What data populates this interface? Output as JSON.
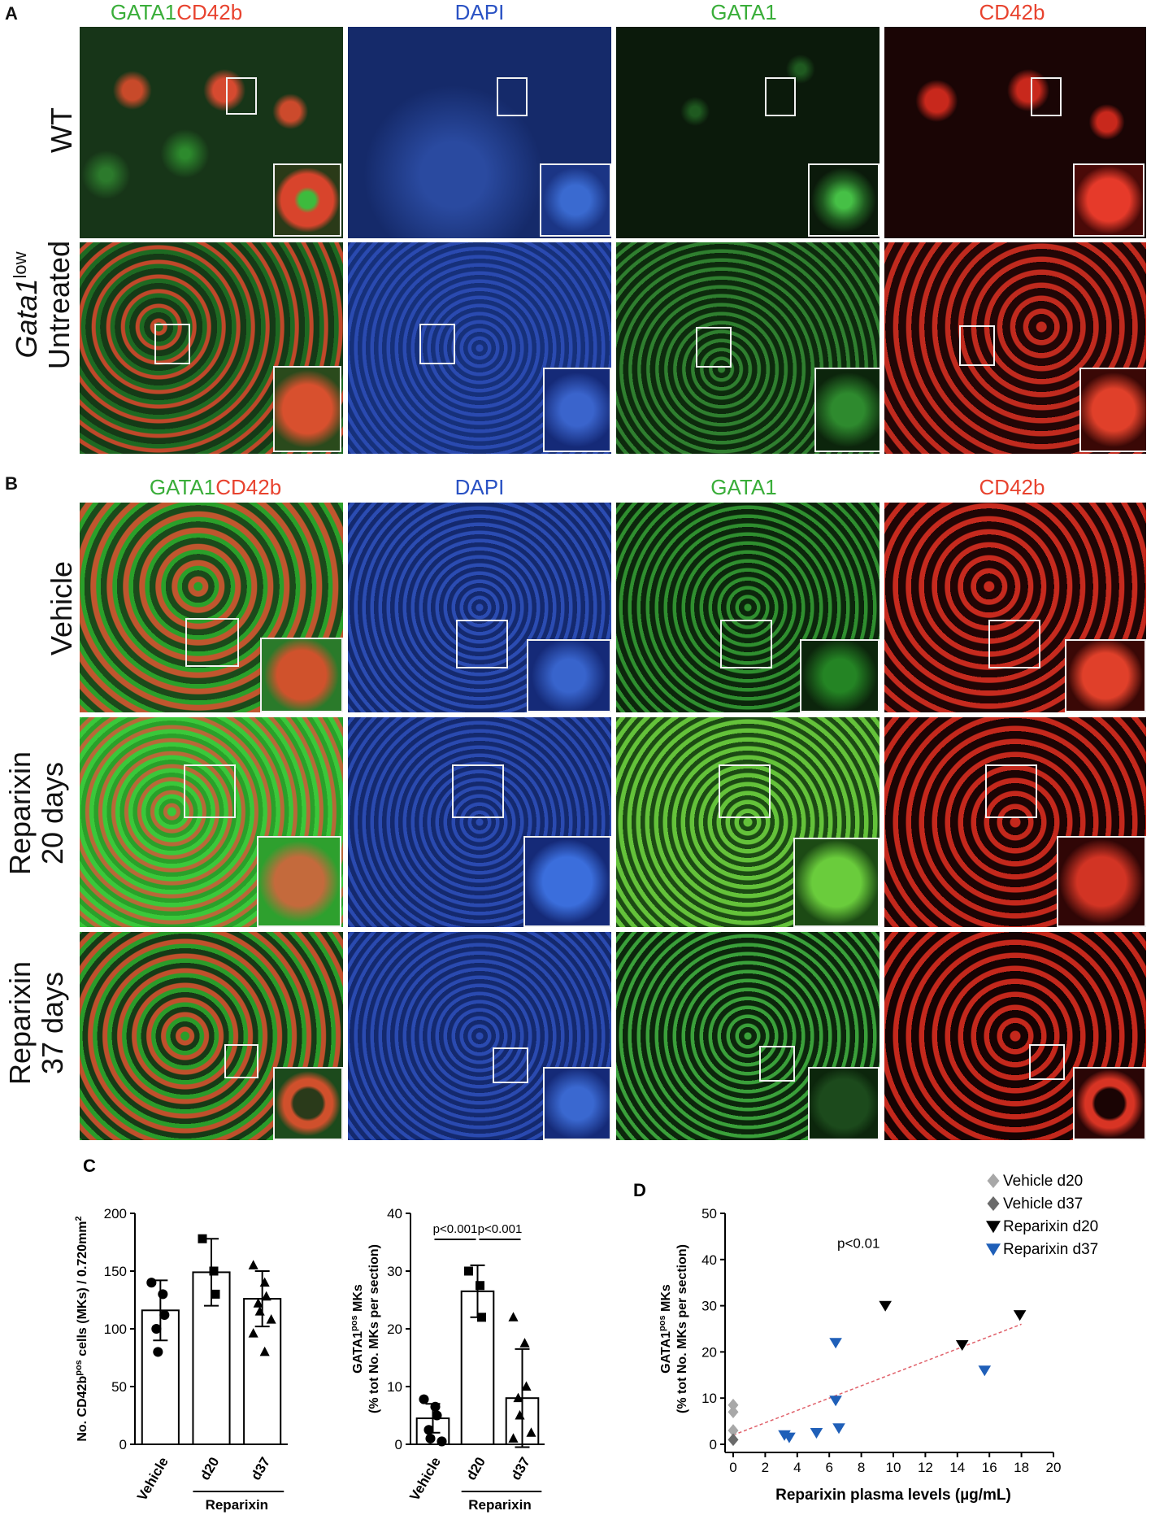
{
  "panels": {
    "A": {
      "letter": "A",
      "columns": [
        {
          "part1": "GATA1",
          "part2": "CD42b"
        },
        {
          "label": "DAPI"
        },
        {
          "label": "GATA1"
        },
        {
          "label": "CD42b"
        }
      ],
      "rows": [
        {
          "label": "WT"
        },
        {
          "italic": "Gata1",
          "sup": "low",
          "second": "Untreated"
        }
      ]
    },
    "B": {
      "letter": "B",
      "columns": [
        {
          "part1": "GATA1",
          "part2": "CD42b"
        },
        {
          "label": "DAPI"
        },
        {
          "label": "GATA1"
        },
        {
          "label": "CD42b"
        }
      ],
      "rows": [
        {
          "label": "Vehicle"
        },
        {
          "line1": "Reparixin",
          "line2": "20 days"
        },
        {
          "line1": "Reparixin",
          "line2": "37 days"
        }
      ]
    }
  },
  "colors": {
    "merge_green": "#35b535",
    "merge_red": "#e04a2c",
    "dapi": "#1f3fa8",
    "gata1": "#2fa02f",
    "cd42b": "#d8261c",
    "series_vehicle_d20": "#a8a8a8",
    "series_vehicle_d37": "#6a6a6a",
    "series_reparixin_d20": "#000000",
    "series_reparixin_d37": "#1f5fb8",
    "trend": "#e0606a"
  },
  "chart_data": [
    {
      "panel": "C",
      "type": "bar",
      "letter": "C",
      "ylabel_pre": "No. CD42b",
      "ylabel_sup": "pos",
      "ylabel_post": " cells (MKs) / 0.720mm",
      "ylabel_sup2": "2",
      "ylim": [
        0,
        200
      ],
      "yticks": [
        0,
        50,
        100,
        150,
        200
      ],
      "categories": [
        "Vehicle",
        "d20",
        "d37"
      ],
      "group_label": "Reparixin",
      "values": [
        116,
        149,
        126
      ],
      "errors": [
        26,
        29,
        24
      ],
      "markers": [
        "circle",
        "square",
        "triangle"
      ],
      "points": [
        [
          140,
          130,
          112,
          100,
          80
        ],
        [
          178,
          150,
          130
        ],
        [
          155,
          140,
          128,
          122,
          115,
          108,
          96,
          80
        ]
      ]
    },
    {
      "panel": "C2",
      "type": "bar",
      "ylabel_pre": "GATA1",
      "ylabel_sup": "pos",
      "ylabel_post": " MKs",
      "ylabel_line2": "(% tot No. MKs per section)",
      "ylim": [
        0,
        40
      ],
      "yticks": [
        0,
        10,
        20,
        30,
        40
      ],
      "categories": [
        "Vehicle",
        "d20",
        "d37"
      ],
      "group_label": "Reparixin",
      "values": [
        4.5,
        26.5,
        8
      ],
      "errors": [
        2.5,
        4.5,
        8.5
      ],
      "markers": [
        "circle",
        "square",
        "triangle"
      ],
      "points": [
        [
          7.8,
          6.5,
          5,
          2.5,
          1,
          0.5
        ],
        [
          30,
          27.5,
          22
        ],
        [
          22,
          17.5,
          10,
          8,
          5,
          2,
          1
        ]
      ],
      "annotations": [
        {
          "text": "p<0.001",
          "from": 0,
          "to": 1
        },
        {
          "text": "p<0.001",
          "from": 1,
          "to": 2
        }
      ]
    },
    {
      "panel": "D",
      "type": "scatter",
      "letter": "D",
      "ylabel_pre": "GATA1",
      "ylabel_sup": "pos",
      "ylabel_post": " MKs",
      "ylabel_line2": "(% tot No. MKs per section)",
      "xlabel": "Reparixin plasma levels (µg/mL)",
      "xlim": [
        0,
        20
      ],
      "ylim": [
        0,
        50
      ],
      "xticks": [
        0,
        2,
        4,
        6,
        8,
        10,
        12,
        14,
        16,
        18,
        20
      ],
      "yticks": [
        0,
        10,
        20,
        30,
        40,
        50
      ],
      "pvalue": "p<0.01",
      "legend_position": "top-right",
      "series": [
        {
          "name": "Vehicle d20",
          "marker": "diamond",
          "color": "#a8a8a8",
          "points": [
            [
              0,
              8.5
            ],
            [
              0,
              7
            ],
            [
              0,
              3
            ]
          ]
        },
        {
          "name": "Vehicle d37",
          "marker": "diamond",
          "color": "#6a6a6a",
          "points": [
            [
              0,
              1
            ]
          ]
        },
        {
          "name": "Reparixin d20",
          "marker": "triangle-down",
          "color": "#000000",
          "points": [
            [
              9.5,
              30
            ],
            [
              14.3,
              21.5
            ],
            [
              17.9,
              28
            ]
          ]
        },
        {
          "name": "Reparixin d37",
          "marker": "triangle-down",
          "color": "#1f5fb8",
          "points": [
            [
              6.4,
              22
            ],
            [
              15.7,
              16
            ],
            [
              6.4,
              9.5
            ],
            [
              6.6,
              3.5
            ],
            [
              3.2,
              2
            ],
            [
              3.5,
              1.5
            ],
            [
              5.2,
              2.5
            ]
          ]
        }
      ],
      "trendline": [
        [
          0,
          2
        ],
        [
          18,
          26
        ]
      ]
    }
  ]
}
